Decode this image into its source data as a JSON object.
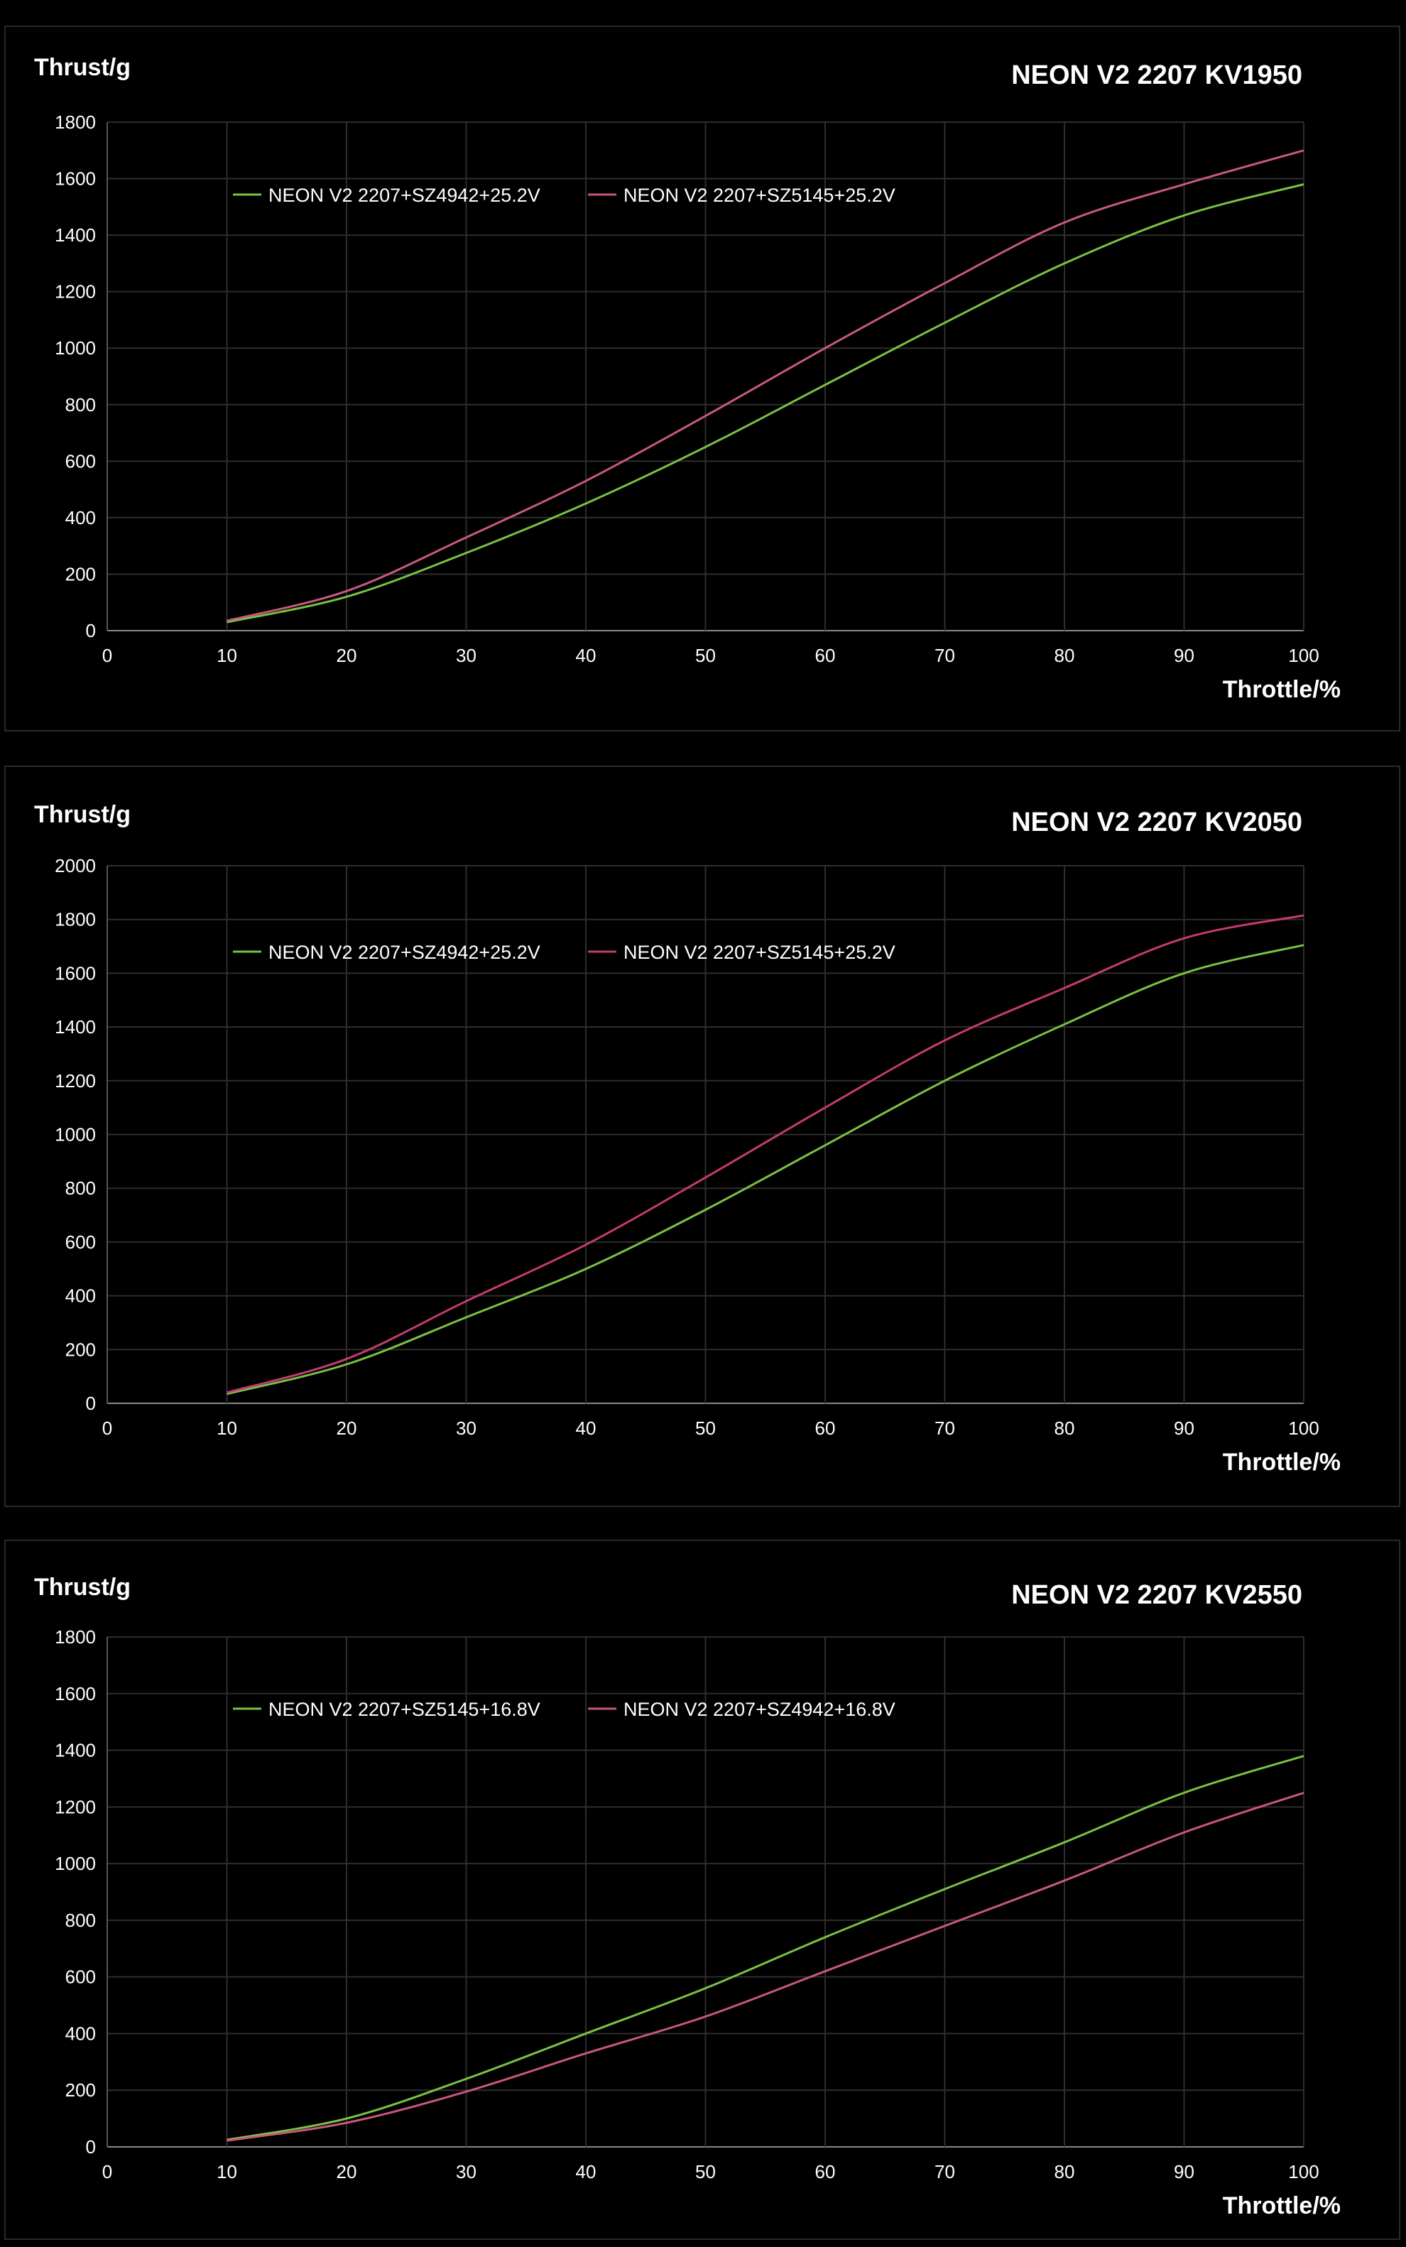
{
  "chart_data": [
    {
      "type": "line",
      "title": "NEON V2 2207 KV1950",
      "xlabel": "Throttle/%",
      "ylabel": "Thrust/g",
      "xlim": [
        0,
        100
      ],
      "ylim": [
        0,
        1800
      ],
      "xticks": [
        0,
        10,
        20,
        30,
        40,
        50,
        60,
        70,
        80,
        90,
        100
      ],
      "yticks": [
        0,
        200,
        400,
        600,
        800,
        1000,
        1200,
        1400,
        1600,
        1800
      ],
      "grid": true,
      "legend": "top-left",
      "x": [
        10,
        20,
        30,
        40,
        50,
        60,
        70,
        80,
        90,
        100
      ],
      "series": [
        {
          "name": "NEON V2 2207+SZ4942+25.2V",
          "color": "#7cc043",
          "values": [
            30,
            120,
            275,
            450,
            650,
            870,
            1090,
            1300,
            1470,
            1580
          ]
        },
        {
          "name": "NEON V2 2207+SZ5145+25.2V",
          "color": "#c8587f",
          "values": [
            35,
            140,
            330,
            530,
            760,
            1000,
            1230,
            1445,
            1580,
            1700
          ]
        }
      ]
    },
    {
      "type": "line",
      "title": "NEON V2 2207 KV2050",
      "xlabel": "Throttle/%",
      "ylabel": "Thrust/g",
      "xlim": [
        0,
        100
      ],
      "ylim": [
        0,
        2000
      ],
      "xticks": [
        0,
        10,
        20,
        30,
        40,
        50,
        60,
        70,
        80,
        90,
        100
      ],
      "yticks": [
        0,
        200,
        400,
        600,
        800,
        1000,
        1200,
        1400,
        1600,
        1800,
        2000
      ],
      "grid": true,
      "legend": "top-left",
      "x": [
        10,
        20,
        30,
        40,
        50,
        60,
        70,
        80,
        90,
        100
      ],
      "series": [
        {
          "name": "NEON V2 2207+SZ4942+25.2V",
          "color": "#7cc043",
          "values": [
            35,
            145,
            320,
            500,
            720,
            960,
            1200,
            1410,
            1600,
            1705
          ]
        },
        {
          "name": "NEON V2 2207+SZ5145+25.2V",
          "color": "#c43a74",
          "values": [
            40,
            165,
            380,
            590,
            840,
            1100,
            1350,
            1545,
            1730,
            1815
          ]
        }
      ]
    },
    {
      "type": "line",
      "title": "NEON V2 2207 KV2550",
      "xlabel": "Throttle/%",
      "ylabel": "Thrust/g",
      "xlim": [
        0,
        100
      ],
      "ylim": [
        0,
        1800
      ],
      "xticks": [
        0,
        10,
        20,
        30,
        40,
        50,
        60,
        70,
        80,
        90,
        100
      ],
      "yticks": [
        0,
        200,
        400,
        600,
        800,
        1000,
        1200,
        1400,
        1600,
        1800
      ],
      "grid": true,
      "legend": "top-left",
      "x": [
        10,
        20,
        30,
        40,
        50,
        60,
        70,
        80,
        90,
        100
      ],
      "series": [
        {
          "name": "NEON V2 2207+SZ5145+16.8V",
          "color": "#7cc043",
          "values": [
            25,
            100,
            240,
            400,
            560,
            740,
            910,
            1075,
            1250,
            1380
          ]
        },
        {
          "name": "NEON V2 2207+SZ4942+16.8V",
          "color": "#c8587f",
          "values": [
            22,
            85,
            195,
            330,
            460,
            620,
            780,
            940,
            1110,
            1250
          ]
        }
      ]
    }
  ]
}
